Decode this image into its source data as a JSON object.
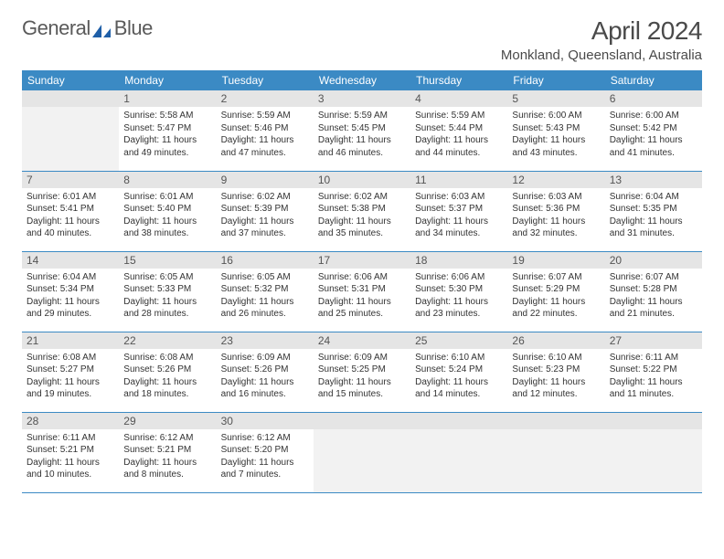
{
  "logo": {
    "text1": "General",
    "text2": "Blue"
  },
  "title": "April 2024",
  "location": "Monkland, Queensland, Australia",
  "colors": {
    "header_bg": "#3b8ac4",
    "header_text": "#ffffff",
    "daynum_bg": "#e5e5e5",
    "daynum_text": "#555555",
    "body_text": "#333333",
    "rule": "#3b8ac4",
    "logo_gray": "#5a5a5a",
    "logo_blue": "#1f5fa8"
  },
  "weekdays": [
    "Sunday",
    "Monday",
    "Tuesday",
    "Wednesday",
    "Thursday",
    "Friday",
    "Saturday"
  ],
  "weeks": [
    [
      null,
      {
        "n": "1",
        "sr": "5:58 AM",
        "ss": "5:47 PM",
        "dl": "11 hours and 49 minutes."
      },
      {
        "n": "2",
        "sr": "5:59 AM",
        "ss": "5:46 PM",
        "dl": "11 hours and 47 minutes."
      },
      {
        "n": "3",
        "sr": "5:59 AM",
        "ss": "5:45 PM",
        "dl": "11 hours and 46 minutes."
      },
      {
        "n": "4",
        "sr": "5:59 AM",
        "ss": "5:44 PM",
        "dl": "11 hours and 44 minutes."
      },
      {
        "n": "5",
        "sr": "6:00 AM",
        "ss": "5:43 PM",
        "dl": "11 hours and 43 minutes."
      },
      {
        "n": "6",
        "sr": "6:00 AM",
        "ss": "5:42 PM",
        "dl": "11 hours and 41 minutes."
      }
    ],
    [
      {
        "n": "7",
        "sr": "6:01 AM",
        "ss": "5:41 PM",
        "dl": "11 hours and 40 minutes."
      },
      {
        "n": "8",
        "sr": "6:01 AM",
        "ss": "5:40 PM",
        "dl": "11 hours and 38 minutes."
      },
      {
        "n": "9",
        "sr": "6:02 AM",
        "ss": "5:39 PM",
        "dl": "11 hours and 37 minutes."
      },
      {
        "n": "10",
        "sr": "6:02 AM",
        "ss": "5:38 PM",
        "dl": "11 hours and 35 minutes."
      },
      {
        "n": "11",
        "sr": "6:03 AM",
        "ss": "5:37 PM",
        "dl": "11 hours and 34 minutes."
      },
      {
        "n": "12",
        "sr": "6:03 AM",
        "ss": "5:36 PM",
        "dl": "11 hours and 32 minutes."
      },
      {
        "n": "13",
        "sr": "6:04 AM",
        "ss": "5:35 PM",
        "dl": "11 hours and 31 minutes."
      }
    ],
    [
      {
        "n": "14",
        "sr": "6:04 AM",
        "ss": "5:34 PM",
        "dl": "11 hours and 29 minutes."
      },
      {
        "n": "15",
        "sr": "6:05 AM",
        "ss": "5:33 PM",
        "dl": "11 hours and 28 minutes."
      },
      {
        "n": "16",
        "sr": "6:05 AM",
        "ss": "5:32 PM",
        "dl": "11 hours and 26 minutes."
      },
      {
        "n": "17",
        "sr": "6:06 AM",
        "ss": "5:31 PM",
        "dl": "11 hours and 25 minutes."
      },
      {
        "n": "18",
        "sr": "6:06 AM",
        "ss": "5:30 PM",
        "dl": "11 hours and 23 minutes."
      },
      {
        "n": "19",
        "sr": "6:07 AM",
        "ss": "5:29 PM",
        "dl": "11 hours and 22 minutes."
      },
      {
        "n": "20",
        "sr": "6:07 AM",
        "ss": "5:28 PM",
        "dl": "11 hours and 21 minutes."
      }
    ],
    [
      {
        "n": "21",
        "sr": "6:08 AM",
        "ss": "5:27 PM",
        "dl": "11 hours and 19 minutes."
      },
      {
        "n": "22",
        "sr": "6:08 AM",
        "ss": "5:26 PM",
        "dl": "11 hours and 18 minutes."
      },
      {
        "n": "23",
        "sr": "6:09 AM",
        "ss": "5:26 PM",
        "dl": "11 hours and 16 minutes."
      },
      {
        "n": "24",
        "sr": "6:09 AM",
        "ss": "5:25 PM",
        "dl": "11 hours and 15 minutes."
      },
      {
        "n": "25",
        "sr": "6:10 AM",
        "ss": "5:24 PM",
        "dl": "11 hours and 14 minutes."
      },
      {
        "n": "26",
        "sr": "6:10 AM",
        "ss": "5:23 PM",
        "dl": "11 hours and 12 minutes."
      },
      {
        "n": "27",
        "sr": "6:11 AM",
        "ss": "5:22 PM",
        "dl": "11 hours and 11 minutes."
      }
    ],
    [
      {
        "n": "28",
        "sr": "6:11 AM",
        "ss": "5:21 PM",
        "dl": "11 hours and 10 minutes."
      },
      {
        "n": "29",
        "sr": "6:12 AM",
        "ss": "5:21 PM",
        "dl": "11 hours and 8 minutes."
      },
      {
        "n": "30",
        "sr": "6:12 AM",
        "ss": "5:20 PM",
        "dl": "11 hours and 7 minutes."
      },
      null,
      null,
      null,
      null
    ]
  ],
  "labels": {
    "sunrise": "Sunrise:",
    "sunset": "Sunset:",
    "daylight": "Daylight:"
  }
}
